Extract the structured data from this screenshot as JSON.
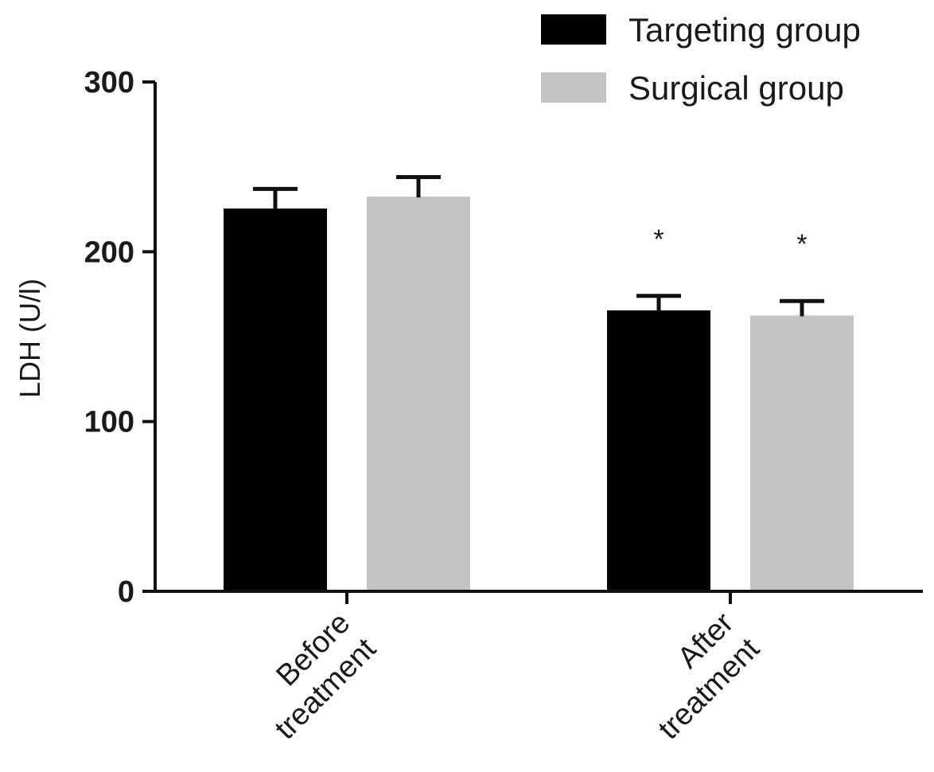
{
  "chart_data": {
    "type": "bar",
    "title": "",
    "xlabel": "",
    "ylabel": "LDH (U/l)",
    "ylim": [
      0,
      300
    ],
    "yticks": [
      "0",
      "100",
      "200",
      "300"
    ],
    "grid": false,
    "legend_position": "top-right",
    "categories": [
      "Before\ntreatment",
      "After\ntreatment"
    ],
    "series": [
      {
        "name": "Targeting group",
        "color": "#000000",
        "values": [
          225,
          165
        ],
        "errors": [
          12,
          9
        ],
        "annotations": [
          "",
          "*"
        ]
      },
      {
        "name": "Surgical group",
        "color": "#c4c4c4",
        "values": [
          232,
          162
        ],
        "errors": [
          12,
          9
        ],
        "annotations": [
          "",
          "*"
        ]
      }
    ]
  }
}
